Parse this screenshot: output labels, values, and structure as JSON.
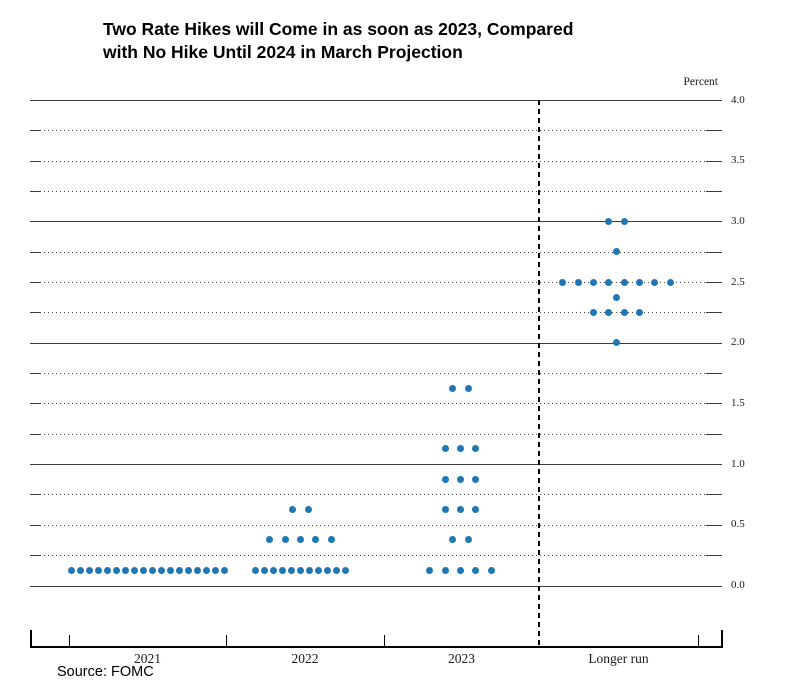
{
  "title": {
    "line1": "Two Rate Hikes will Come in as soon as 2023, Compared",
    "line2": "with No Hike Until 2024 in March Projection"
  },
  "y_axis": {
    "unit_label": "Percent",
    "tick_labels": [
      "0.0",
      "0.5",
      "1.0",
      "1.5",
      "2.0",
      "2.5",
      "3.0",
      "3.5",
      "4.0"
    ]
  },
  "x_axis": {
    "categories": [
      "2021",
      "2022",
      "2023",
      "Longer run"
    ]
  },
  "source": "Source: FOMC",
  "chart_data": {
    "type": "scatter",
    "subtype": "fomc-dot-plot",
    "title": "Two Rate Hikes will Come in as soon as 2023, Compared with No Hike Until 2024 in March Projection",
    "ylabel": "Percent",
    "ylim": [
      0.0,
      4.0
    ],
    "y_gridline_step": 0.25,
    "y_label_step": 0.5,
    "solid_gridlines_at_integers": true,
    "legend": "none",
    "dot_color": "#1f77b4",
    "categories": [
      "2021",
      "2022",
      "2023",
      "Longer run"
    ],
    "series": [
      {
        "category": "2021",
        "dots": [
          {
            "rate": 0.125,
            "count": 18
          }
        ]
      },
      {
        "category": "2022",
        "dots": [
          {
            "rate": 0.625,
            "count": 2
          },
          {
            "rate": 0.375,
            "count": 5
          },
          {
            "rate": 0.125,
            "count": 11
          }
        ]
      },
      {
        "category": "2023",
        "dots": [
          {
            "rate": 1.625,
            "count": 2
          },
          {
            "rate": 1.125,
            "count": 3
          },
          {
            "rate": 0.875,
            "count": 3
          },
          {
            "rate": 0.625,
            "count": 3
          },
          {
            "rate": 0.375,
            "count": 2
          },
          {
            "rate": 0.125,
            "count": 5
          }
        ]
      },
      {
        "category": "Longer run",
        "dots": [
          {
            "rate": 3.0,
            "count": 2
          },
          {
            "rate": 2.75,
            "count": 1
          },
          {
            "rate": 2.5,
            "count": 8
          },
          {
            "rate": 2.375,
            "count": 1
          },
          {
            "rate": 2.25,
            "count": 4
          },
          {
            "rate": 2.0,
            "count": 1
          }
        ]
      }
    ],
    "source": "Source: FOMC"
  }
}
